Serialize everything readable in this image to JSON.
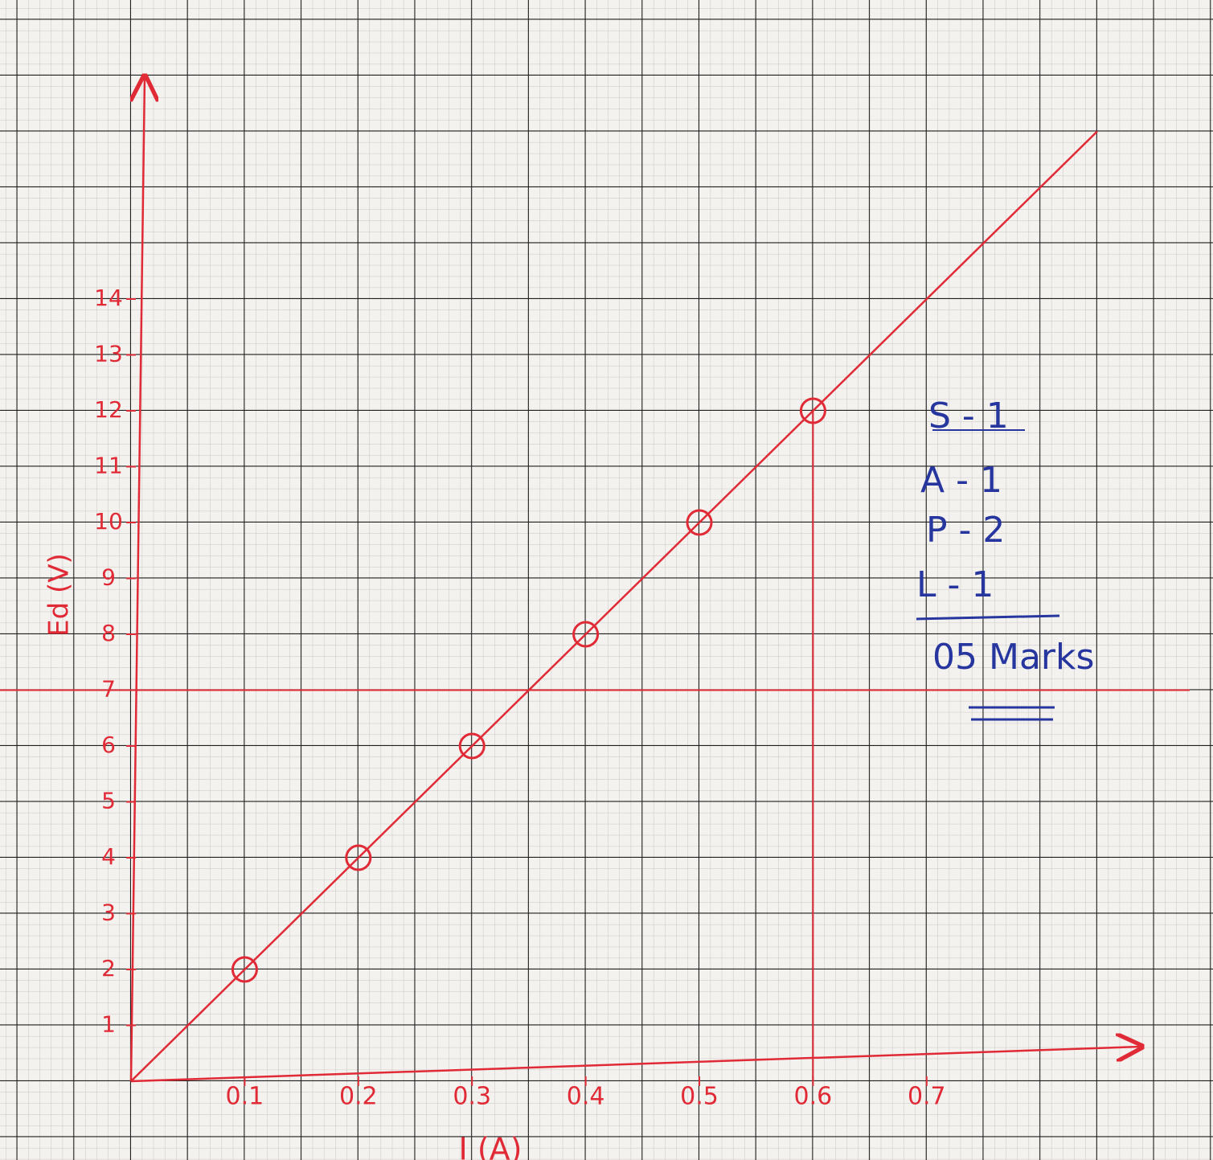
{
  "chart_data": {
    "type": "scatter",
    "x_label": "I (A)",
    "y_label": "Ed (V)",
    "x": [
      0.1,
      0.2,
      0.3,
      0.4,
      0.5,
      0.6
    ],
    "values": [
      2,
      4,
      6,
      8,
      10,
      12
    ],
    "color": "#e02a36",
    "xlim": [
      0,
      0.88
    ],
    "ylim": [
      0,
      18
    ],
    "xticks": [
      0.1,
      0.2,
      0.3,
      0.4,
      0.5,
      0.6,
      0.7
    ],
    "yticks": [
      1,
      2,
      3,
      4,
      5,
      6,
      7,
      8,
      9,
      10,
      11,
      12,
      13,
      14
    ],
    "fit_line": {
      "x": [
        0,
        0.85
      ],
      "y": [
        0,
        17
      ]
    },
    "reference_lines": {
      "x": 0.6,
      "y": 7
    },
    "annotations": [
      "S - 1",
      "A - 1",
      "P - 2",
      "L - 1",
      "05 Marks"
    ],
    "annotation_color": "#26369e"
  }
}
